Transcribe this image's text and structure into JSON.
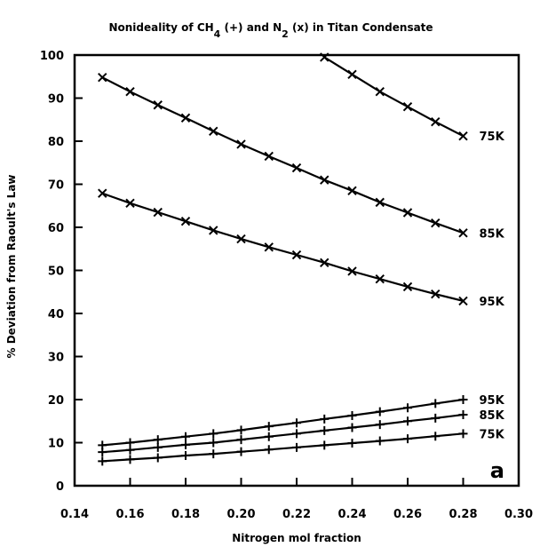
{
  "chart_data": {
    "type": "line",
    "title_parts": {
      "t1": "Nonideality of CH",
      "s1": "4",
      "t2": " (+) and N",
      "s2": "2",
      "t3": " (x) in Titan Condensate"
    },
    "xlabel": "Nitrogen mol fraction",
    "ylabel": "% Deviation from Raoult's Law",
    "xlim": [
      0.14,
      0.3
    ],
    "ylim": [
      0,
      100
    ],
    "xticks": [
      "0.14",
      "0.16",
      "0.18",
      "0.20",
      "0.22",
      "0.24",
      "0.26",
      "0.28",
      "0.30"
    ],
    "yticks": [
      "0",
      "10",
      "20",
      "30",
      "40",
      "50",
      "60",
      "70",
      "80",
      "90",
      "100"
    ],
    "panel_label": "a",
    "grid": false,
    "series": [
      {
        "name": "75K",
        "species": "N2",
        "marker": "x",
        "x": [
          0.23,
          0.24,
          0.25,
          0.26,
          0.27,
          0.28
        ],
        "y": [
          99.5,
          95.5,
          91.5,
          88.0,
          84.5,
          81.2
        ]
      },
      {
        "name": "85K",
        "species": "N2",
        "marker": "x",
        "x": [
          0.15,
          0.16,
          0.17,
          0.18,
          0.19,
          0.2,
          0.21,
          0.22,
          0.23,
          0.24,
          0.25,
          0.26,
          0.27,
          0.28
        ],
        "y": [
          94.8,
          91.5,
          88.4,
          85.4,
          82.3,
          79.3,
          76.5,
          73.8,
          71.0,
          68.5,
          65.8,
          63.4,
          61.0,
          58.7
        ]
      },
      {
        "name": "95K",
        "species": "N2",
        "marker": "x",
        "x": [
          0.15,
          0.16,
          0.17,
          0.18,
          0.19,
          0.2,
          0.21,
          0.22,
          0.23,
          0.24,
          0.25,
          0.26,
          0.27,
          0.28
        ],
        "y": [
          67.9,
          65.6,
          63.5,
          61.4,
          59.3,
          57.3,
          55.4,
          53.6,
          51.8,
          49.8,
          48.0,
          46.2,
          44.5,
          42.9
        ]
      },
      {
        "name": "95K",
        "species": "CH4",
        "marker": "+",
        "x": [
          0.15,
          0.16,
          0.17,
          0.18,
          0.19,
          0.2,
          0.21,
          0.22,
          0.23,
          0.24,
          0.25,
          0.26,
          0.27,
          0.28
        ],
        "y": [
          9.4,
          10.0,
          10.7,
          11.4,
          12.1,
          12.9,
          13.8,
          14.6,
          15.5,
          16.3,
          17.2,
          18.1,
          19.1,
          20.0
        ]
      },
      {
        "name": "85K",
        "species": "CH4",
        "marker": "+",
        "x": [
          0.15,
          0.16,
          0.17,
          0.18,
          0.19,
          0.2,
          0.21,
          0.22,
          0.23,
          0.24,
          0.25,
          0.26,
          0.27,
          0.28
        ],
        "y": [
          7.8,
          8.3,
          8.9,
          9.5,
          10.0,
          10.7,
          11.4,
          12.1,
          12.8,
          13.5,
          14.2,
          15.0,
          15.7,
          16.5
        ]
      },
      {
        "name": "75K",
        "species": "CH4",
        "marker": "+",
        "x": [
          0.15,
          0.16,
          0.17,
          0.18,
          0.19,
          0.2,
          0.21,
          0.22,
          0.23,
          0.24,
          0.25,
          0.26,
          0.27,
          0.28
        ],
        "y": [
          5.7,
          6.1,
          6.5,
          7.0,
          7.4,
          7.9,
          8.4,
          8.9,
          9.4,
          9.9,
          10.4,
          10.9,
          11.5,
          12.1
        ]
      }
    ]
  }
}
